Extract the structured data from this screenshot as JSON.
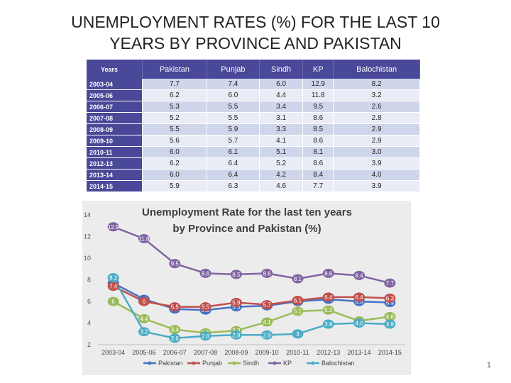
{
  "slide": {
    "title_line1": "UNEMPLOYMENT RATES (%) FOR THE LAST 10",
    "title_line2": "YEARS BY PROVINCE AND PAKISTAN",
    "page_number": "1"
  },
  "table": {
    "headers": [
      "Years",
      "Pakistan",
      "Punjab",
      "Sindh",
      "KP",
      "Balochistan"
    ],
    "rows": [
      [
        "2003-04",
        "7.7",
        "7.4",
        "6.0",
        "12.9",
        "8.2"
      ],
      [
        "2005-06",
        "6.2",
        "6.0",
        "4.4",
        "11.8",
        "3.2"
      ],
      [
        "2006-07",
        "5.3",
        "5.5",
        "3.4",
        "9.5",
        "2.6"
      ],
      [
        "2007-08",
        "5.2",
        "5.5",
        "3.1",
        "8.6",
        "2.8"
      ],
      [
        "2008-09",
        "5.5",
        "5.9",
        "3.3",
        "8.5",
        "2.9"
      ],
      [
        "2009-10",
        "5.6",
        "5.7",
        "4.1",
        "8.6",
        "2.9"
      ],
      [
        "2010-11",
        "6.0",
        "6.1",
        "5.1",
        "8.1",
        "3.0"
      ],
      [
        "2012-13",
        "6.2",
        "6.4",
        "5.2",
        "8.6",
        "3.9"
      ],
      [
        "2013-14",
        "6.0",
        "6.4",
        "4.2",
        "8.4",
        "4.0"
      ],
      [
        "2014-15",
        "5.9",
        "6.3",
        "4.6",
        "7.7",
        "3.9"
      ]
    ]
  },
  "chart_data": {
    "type": "line",
    "title": "Unemployment Rate for the last ten years by Province and Pakistan (%)",
    "title_line1": "Unemployment Rate for the last ten years",
    "title_line2": "by Province and Pakistan (%)",
    "categories": [
      "2003-04",
      "2005-06",
      "2006-07",
      "2007-08",
      "2008-09",
      "2009-10",
      "2010-11",
      "2012-13",
      "2013-14",
      "2014-15"
    ],
    "ylim": [
      2,
      14
    ],
    "yticks": [
      "2",
      "4",
      "6",
      "8",
      "10",
      "12",
      "14"
    ],
    "legend_position": "bottom",
    "series": [
      {
        "name": "Pakistan",
        "color": "#4472c4",
        "values": [
          7.7,
          6.2,
          5.3,
          5.2,
          5.5,
          5.6,
          6.0,
          6.2,
          6.0,
          5.9
        ],
        "labels": [
          "7.7",
          "6.2",
          "5.3",
          "5.2",
          "5.5",
          "5.6",
          "6",
          "6.2",
          "6.0",
          "5.9"
        ]
      },
      {
        "name": "Punjab",
        "color": "#c0504d",
        "values": [
          7.4,
          6.0,
          5.5,
          5.5,
          5.9,
          5.7,
          6.1,
          6.4,
          6.4,
          6.3
        ],
        "labels": [
          "7.4",
          "6",
          "5.5",
          "5.5",
          "5.9",
          "5.7",
          "6.1",
          "6.4",
          "6.4",
          "6.3"
        ]
      },
      {
        "name": "Sindh",
        "color": "#9bbb59",
        "values": [
          6.0,
          4.4,
          3.4,
          3.1,
          3.3,
          4.1,
          5.1,
          5.2,
          4.2,
          4.6
        ],
        "labels": [
          "6",
          "4.4",
          "3.4",
          "3.1",
          "3.3",
          "4.1",
          "5.1",
          "5.2",
          "4.2",
          "4.6"
        ]
      },
      {
        "name": "KP",
        "color": "#8064a2",
        "values": [
          12.9,
          11.8,
          9.5,
          8.6,
          8.5,
          8.6,
          8.1,
          8.6,
          8.4,
          7.7
        ],
        "labels": [
          "12.9",
          "11.8",
          "9.5",
          "8.6",
          "8.5",
          "8.6",
          "8.1",
          "8.6",
          "8.4",
          "7.7"
        ]
      },
      {
        "name": "Balochistan",
        "color": "#4bacc6",
        "values": [
          8.2,
          3.2,
          2.6,
          2.8,
          2.9,
          2.9,
          3.0,
          3.9,
          4.0,
          3.9
        ],
        "labels": [
          "8.2",
          "3.2",
          "2.6",
          "2.8",
          "2.9",
          "2.9",
          "3",
          "3.9",
          "4.0",
          "3.9"
        ]
      }
    ]
  }
}
